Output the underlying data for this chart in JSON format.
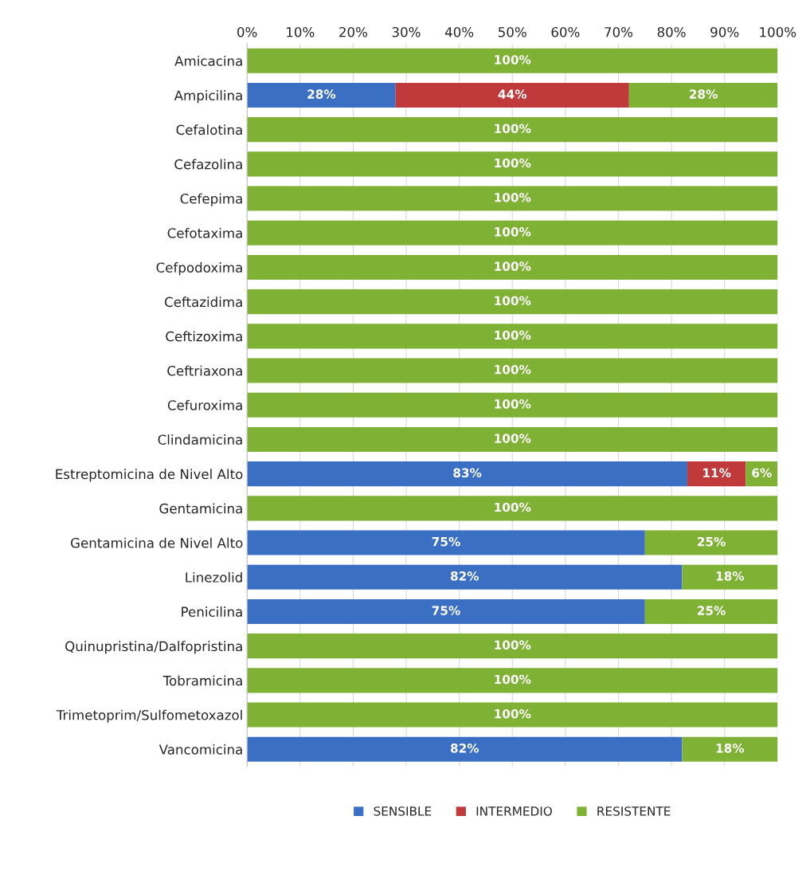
{
  "chart_data": {
    "type": "bar",
    "orientation": "horizontal",
    "stacked": true,
    "categories": [
      "Amicacina",
      "Ampicilina",
      "Cefalotina",
      "Cefazolina",
      "Cefepima",
      "Cefotaxima",
      "Cefpodoxima",
      "Ceftazidima",
      "Ceftizoxima",
      "Ceftriaxona",
      "Cefuroxima",
      "Clindamicina",
      "Estreptomicina de Nivel Alto",
      "Gentamicina",
      "Gentamicina de Nivel Alto",
      "Linezolid",
      "Penicilina",
      "Quinupristina/Dalfopristina",
      "Tobramicina",
      "Trimetoprim/Sulfometoxazol",
      "Vancomicina"
    ],
    "series": [
      {
        "name": "SENSIBLE",
        "color": "#3a6fc4",
        "values": [
          0,
          28,
          0,
          0,
          0,
          0,
          0,
          0,
          0,
          0,
          0,
          0,
          83,
          0,
          75,
          82,
          75,
          0,
          0,
          0,
          82
        ],
        "value_labels": [
          null,
          "28%",
          null,
          null,
          null,
          null,
          null,
          null,
          null,
          null,
          null,
          null,
          "83%",
          null,
          "75%",
          "82%",
          "75%",
          null,
          null,
          null,
          "82%"
        ]
      },
      {
        "name": "INTERMEDIO",
        "color": "#c0393b",
        "values": [
          0,
          44,
          0,
          0,
          0,
          0,
          0,
          0,
          0,
          0,
          0,
          0,
          11,
          0,
          0,
          0,
          0,
          0,
          0,
          0,
          0
        ],
        "value_labels": [
          null,
          "44%",
          null,
          null,
          null,
          null,
          null,
          null,
          null,
          null,
          null,
          null,
          "11%",
          null,
          null,
          null,
          null,
          null,
          null,
          null,
          null
        ]
      },
      {
        "name": "RESISTENTE",
        "color": "#7fb135",
        "values": [
          100,
          28,
          100,
          100,
          100,
          100,
          100,
          100,
          100,
          100,
          100,
          100,
          6,
          100,
          25,
          18,
          25,
          100,
          100,
          100,
          18
        ],
        "value_labels": [
          "100%",
          "28%",
          "100%",
          "100%",
          "100%",
          "100%",
          "100%",
          "100%",
          "100%",
          "100%",
          "100%",
          "100%",
          "6%",
          "100%",
          "25%",
          "18%",
          "25%",
          "100%",
          "100%",
          "100%",
          "18%"
        ]
      }
    ],
    "xlim": [
      0,
      100
    ],
    "xticks": [
      {
        "value": 0,
        "label": "0%"
      },
      {
        "value": 10,
        "label": "10%"
      },
      {
        "value": 20,
        "label": "20%"
      },
      {
        "value": 30,
        "label": "30%"
      },
      {
        "value": 40,
        "label": "40%"
      },
      {
        "value": 50,
        "label": "50%"
      },
      {
        "value": 60,
        "label": "60%"
      },
      {
        "value": 70,
        "label": "70%"
      },
      {
        "value": 80,
        "label": "80%"
      },
      {
        "value": 90,
        "label": "90%"
      },
      {
        "value": 100,
        "label": "100%"
      }
    ],
    "grid": "x",
    "legend": "bottom"
  }
}
